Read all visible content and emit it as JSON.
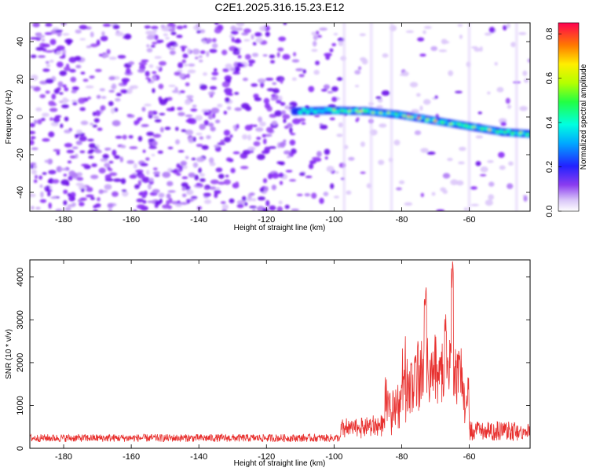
{
  "title": "C2E1.2025.316.15.23.E12",
  "chart_data": [
    {
      "type": "heatmap",
      "xlabel": "Height of straight line (km)",
      "ylabel": "Frequency (Hz)",
      "xlim": [
        -190,
        -42
      ],
      "ylim": [
        -50,
        50
      ],
      "xticks": [
        -180,
        -160,
        -140,
        -120,
        -100,
        -80,
        -60
      ],
      "yticks": [
        -40,
        -20,
        0,
        20,
        40
      ],
      "colorbar": {
        "label": "Normalized spectral amplitude",
        "range": [
          0,
          0.85
        ],
        "ticks": [
          "0.0",
          "0.2",
          "0.4",
          "0.6",
          "0.8"
        ]
      },
      "ridge": {
        "description": "signal band",
        "points": [
          [
            -112,
            3
          ],
          [
            -100,
            3.5
          ],
          [
            -90,
            3
          ],
          [
            -80,
            1
          ],
          [
            -70,
            -2
          ],
          [
            -60,
            -5
          ],
          [
            -50,
            -8
          ],
          [
            -42,
            -9
          ]
        ]
      }
    },
    {
      "type": "line",
      "xlabel": "Height of straight line (km)",
      "ylabel": "SNR (10 * v/v)",
      "xlim": [
        -190,
        -42
      ],
      "ylim": [
        0,
        4400
      ],
      "xticks": [
        -180,
        -160,
        -140,
        -120,
        -100,
        -80,
        -60
      ],
      "yticks": [
        0,
        1000,
        2000,
        3000,
        4000
      ],
      "color": "#e8312f",
      "peaks": [
        [
          -73,
          3800
        ],
        [
          -65,
          4400
        ],
        [
          -67,
          3150
        ],
        [
          -76,
          2300
        ]
      ]
    }
  ]
}
